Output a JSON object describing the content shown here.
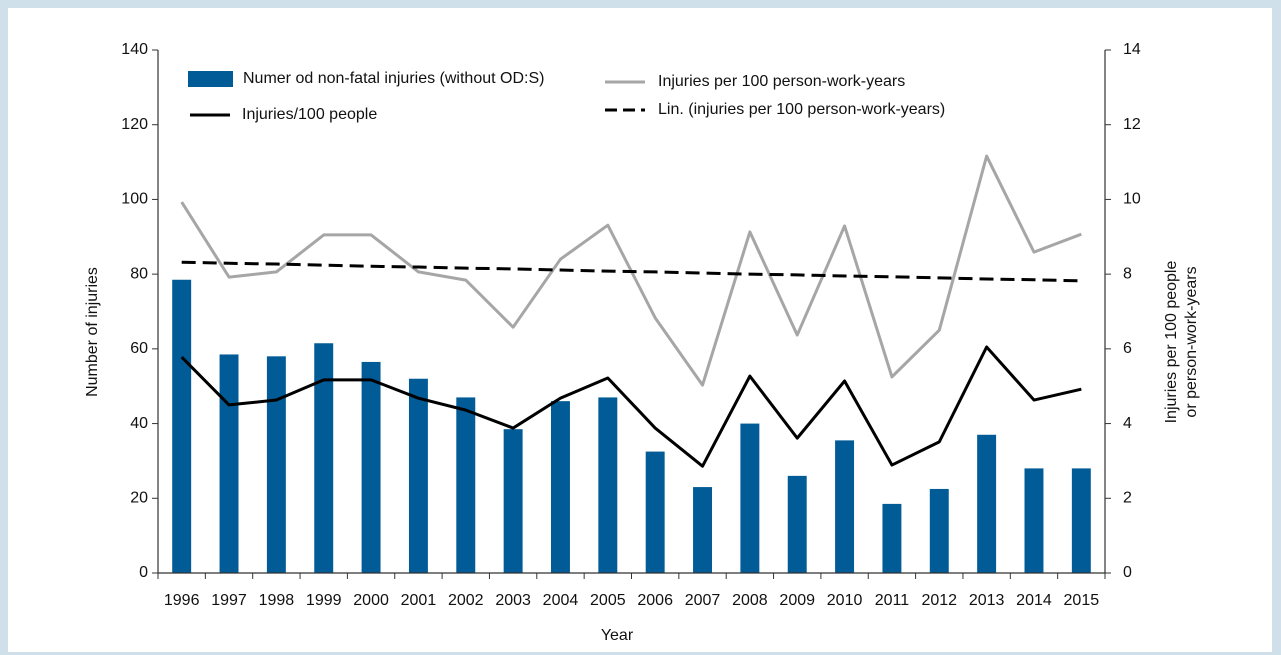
{
  "chart_data": {
    "type": "combo",
    "xlabel": "Year",
    "ylabel": "Number of injuries",
    "y2label": [
      "Injuries per 100 people",
      "or person-work-years"
    ],
    "categories": [
      "1996",
      "1997",
      "1998",
      "1999",
      "2000",
      "2001",
      "2002",
      "2003",
      "2004",
      "2005",
      "2006",
      "2007",
      "2008",
      "2009",
      "2010",
      "2011",
      "2012",
      "2013",
      "2014",
      "2015"
    ],
    "series": [
      {
        "name": "Numer od non-fatal injuries (without OD:S)",
        "type": "bar",
        "axis": "y",
        "color": "#005b96",
        "values": [
          78.5,
          58.5,
          58,
          61.5,
          56.5,
          52,
          47,
          38.5,
          46,
          47,
          32.5,
          23,
          40,
          26,
          35.5,
          18.5,
          22.5,
          37,
          28,
          28
        ]
      },
      {
        "name": "Injuries/100 people",
        "type": "line",
        "axis": "y2",
        "color": "#000000",
        "style": "solid",
        "values": [
          5.78,
          4.5,
          4.63,
          5.17,
          5.17,
          4.68,
          4.36,
          3.88,
          4.68,
          5.22,
          3.88,
          2.86,
          5.27,
          3.61,
          5.14,
          2.89,
          3.51,
          6.05,
          4.63,
          4.92
        ]
      },
      {
        "name": "Injuries per 100 person-work-years",
        "type": "line",
        "axis": "y2",
        "color": "#a6a6a6",
        "style": "solid",
        "values": [
          9.93,
          7.92,
          8.06,
          9.05,
          9.05,
          8.06,
          7.84,
          6.58,
          8.4,
          9.31,
          6.83,
          5.03,
          9.13,
          6.37,
          9.29,
          5.25,
          6.5,
          11.16,
          8.59,
          9.07
        ]
      },
      {
        "name": "Lin. (injuries per 100 person-work-years)",
        "type": "line",
        "axis": "y2",
        "color": "#000000",
        "style": "dashed",
        "values": [
          8.32,
          8.29,
          8.27,
          8.24,
          8.21,
          8.19,
          8.16,
          8.14,
          8.11,
          8.08,
          8.06,
          8.03,
          8.0,
          7.98,
          7.95,
          7.93,
          7.9,
          7.87,
          7.85,
          7.82
        ]
      }
    ],
    "ylim": [
      0,
      140
    ],
    "yticks": [
      0,
      20,
      40,
      60,
      80,
      100,
      120,
      140
    ],
    "y2lim": [
      0,
      14
    ],
    "y2ticks": [
      0,
      2,
      4,
      6,
      8,
      10,
      12,
      14
    ],
    "legend": "top-left"
  }
}
